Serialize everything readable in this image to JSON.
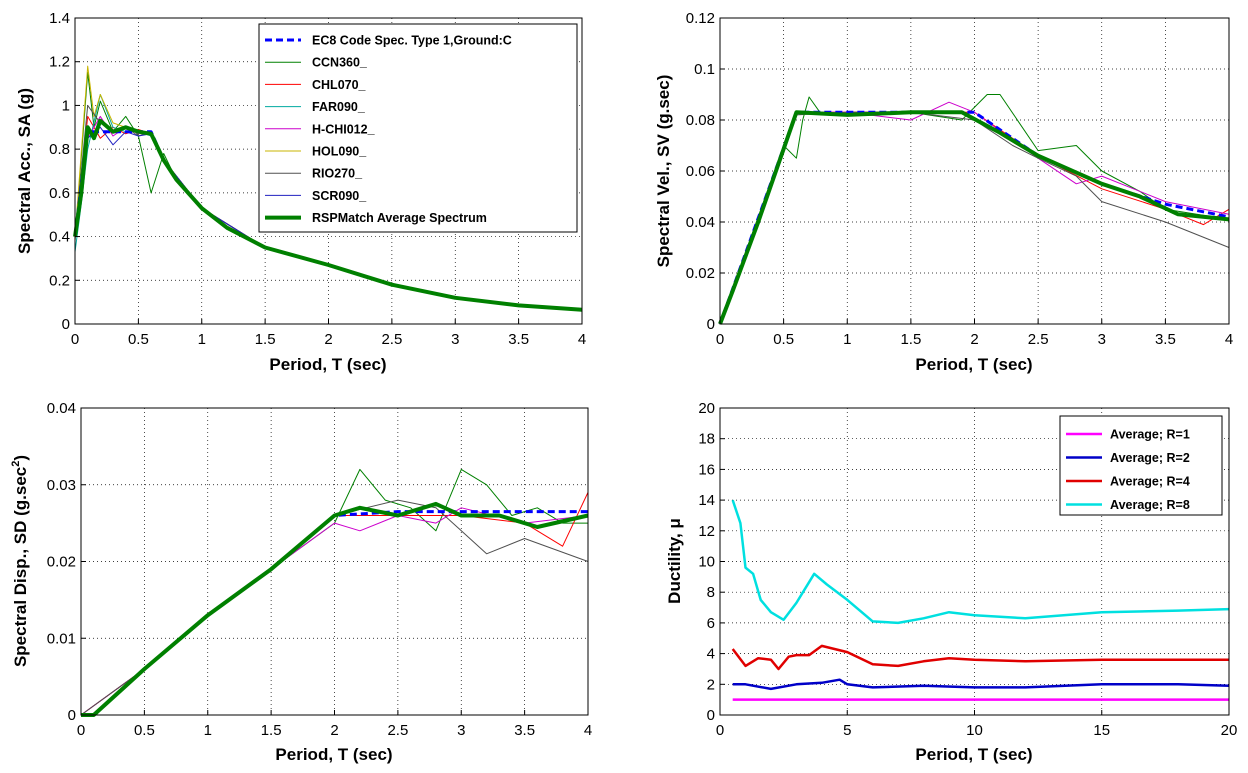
{
  "chart_data": [
    {
      "type": "line",
      "xlabel": "Period, T (sec)",
      "ylabel": "Spectral Acc., SA (g)",
      "xlim": [
        0,
        4
      ],
      "ylim": [
        0,
        1.4
      ],
      "xticks": [
        "0",
        "0.5",
        "1",
        "1.5",
        "2",
        "2.5",
        "3",
        "3.5",
        "4"
      ],
      "yticks": [
        "0",
        "0.2",
        "0.4",
        "0.6",
        "0.8",
        "1",
        "1.2",
        "1.4"
      ],
      "grid": true,
      "legend_position": "top-right",
      "series": [
        {
          "name": "EC8 Code Spec. Type 1,Ground:C",
          "color": "#0000ff",
          "style": "dashed",
          "x": [
            0,
            0.1,
            0.2,
            0.3,
            0.4,
            0.5,
            0.6,
            0.7,
            0.8,
            1.0,
            1.2,
            1.5,
            2.0,
            2.5,
            3.0,
            3.5,
            4.0
          ],
          "y": [
            0.4,
            0.88,
            0.88,
            0.88,
            0.88,
            0.88,
            0.88,
            0.75,
            0.66,
            0.53,
            0.44,
            0.35,
            0.27,
            0.18,
            0.12,
            0.085,
            0.065
          ]
        },
        {
          "name": "CCN360_",
          "color": "#008000",
          "x": [
            0,
            0.1,
            0.15,
            0.2,
            0.3,
            0.4,
            0.5,
            0.6,
            0.7,
            0.8,
            1.0,
            1.5,
            2.0,
            2.5,
            3.0,
            3.5,
            4.0
          ],
          "y": [
            0.38,
            1.15,
            0.9,
            1.02,
            0.88,
            0.95,
            0.86,
            0.6,
            0.78,
            0.66,
            0.53,
            0.35,
            0.27,
            0.18,
            0.12,
            0.09,
            0.065
          ]
        },
        {
          "name": "CHL070_",
          "color": "#ff0000",
          "x": [
            0,
            0.1,
            0.2,
            0.3,
            0.4,
            0.5,
            0.6,
            0.7,
            1.0,
            1.5,
            2.0,
            2.5,
            3.0,
            3.5,
            4.0
          ],
          "y": [
            0.4,
            0.95,
            0.85,
            0.9,
            0.87,
            0.89,
            0.87,
            0.75,
            0.53,
            0.35,
            0.27,
            0.18,
            0.12,
            0.085,
            0.065
          ]
        },
        {
          "name": "FAR090_",
          "color": "#00aaa0",
          "x": [
            0,
            0.05,
            0.1,
            0.2,
            0.3,
            0.4,
            0.5,
            0.6,
            0.7,
            1.0,
            1.5,
            2.0,
            2.5,
            3.0,
            3.5,
            4.0
          ],
          "y": [
            0.33,
            0.55,
            0.8,
            1.05,
            0.9,
            0.88,
            0.88,
            0.86,
            0.75,
            0.53,
            0.35,
            0.27,
            0.18,
            0.12,
            0.085,
            0.065
          ]
        },
        {
          "name": "H-CHI012_",
          "color": "#cc00cc",
          "x": [
            0,
            0.1,
            0.2,
            0.3,
            0.4,
            0.5,
            0.6,
            0.7,
            1.0,
            1.5,
            2.0,
            2.5,
            3.0,
            3.5,
            4.0
          ],
          "y": [
            0.4,
            0.85,
            0.95,
            0.86,
            0.9,
            0.87,
            0.88,
            0.75,
            0.53,
            0.35,
            0.27,
            0.18,
            0.12,
            0.085,
            0.065
          ]
        },
        {
          "name": "HOL090_",
          "color": "#c8b400",
          "x": [
            0,
            0.1,
            0.15,
            0.2,
            0.3,
            0.4,
            0.5,
            0.6,
            0.7,
            1.0,
            1.5,
            2.0,
            2.5,
            3.0,
            3.5,
            4.0
          ],
          "y": [
            0.4,
            1.18,
            0.95,
            1.05,
            0.92,
            0.9,
            0.88,
            0.87,
            0.75,
            0.53,
            0.35,
            0.27,
            0.18,
            0.12,
            0.085,
            0.065
          ]
        },
        {
          "name": "RIO270_",
          "color": "#505050",
          "x": [
            0,
            0.1,
            0.2,
            0.3,
            0.4,
            0.5,
            0.6,
            0.7,
            1.0,
            1.5,
            2.0,
            2.5,
            3.0,
            3.5,
            4.0
          ],
          "y": [
            0.4,
            1.0,
            0.92,
            0.88,
            0.9,
            0.86,
            0.88,
            0.75,
            0.53,
            0.35,
            0.27,
            0.18,
            0.12,
            0.08,
            0.06
          ]
        },
        {
          "name": "SCR090_",
          "color": "#2020c0",
          "x": [
            0,
            0.1,
            0.2,
            0.3,
            0.4,
            0.5,
            0.6,
            0.7,
            1.0,
            1.5,
            2.0,
            2.5,
            3.0,
            3.5,
            4.0
          ],
          "y": [
            0.4,
            0.85,
            0.9,
            0.82,
            0.88,
            0.86,
            0.87,
            0.75,
            0.53,
            0.35,
            0.27,
            0.18,
            0.12,
            0.085,
            0.065
          ]
        },
        {
          "name": "RSPMatch Average Spectrum",
          "color": "#008000",
          "style": "thick",
          "x": [
            0,
            0.05,
            0.1,
            0.15,
            0.2,
            0.3,
            0.4,
            0.5,
            0.6,
            0.7,
            0.8,
            1.0,
            1.2,
            1.5,
            2.0,
            2.5,
            3.0,
            3.5,
            4.0
          ],
          "y": [
            0.4,
            0.6,
            0.9,
            0.85,
            0.93,
            0.88,
            0.9,
            0.88,
            0.87,
            0.75,
            0.66,
            0.53,
            0.44,
            0.35,
            0.27,
            0.18,
            0.12,
            0.085,
            0.065
          ]
        }
      ]
    },
    {
      "type": "line",
      "xlabel": "Period, T (sec)",
      "ylabel": "Spectral Vel., SV (g.sec)",
      "xlim": [
        0,
        4
      ],
      "ylim": [
        0,
        0.12
      ],
      "xticks": [
        "0",
        "0.5",
        "1",
        "1.5",
        "2",
        "2.5",
        "3",
        "3.5",
        "4"
      ],
      "yticks": [
        "0",
        "0.02",
        "0.04",
        "0.06",
        "0.08",
        "0.1",
        "0.12"
      ],
      "grid": true,
      "series": [
        {
          "name": "EC8 Code Spec. Type 1,Ground:C",
          "color": "#0000ff",
          "style": "dashed",
          "x": [
            0,
            0.6,
            1.0,
            1.5,
            2.0,
            2.5,
            3.0,
            3.5,
            4.0
          ],
          "y": [
            0,
            0.083,
            0.083,
            0.083,
            0.083,
            0.066,
            0.055,
            0.047,
            0.042
          ]
        },
        {
          "name": "CCN360_",
          "color": "#008000",
          "x": [
            0,
            0.5,
            0.6,
            0.65,
            0.7,
            0.8,
            1.0,
            1.5,
            1.9,
            2.1,
            2.2,
            2.5,
            2.8,
            3.0,
            3.3,
            3.5,
            4.0
          ],
          "y": [
            0,
            0.07,
            0.065,
            0.08,
            0.089,
            0.082,
            0.083,
            0.083,
            0.08,
            0.09,
            0.09,
            0.068,
            0.07,
            0.06,
            0.052,
            0.045,
            0.041
          ]
        },
        {
          "name": "CHL070_",
          "color": "#ff0000",
          "x": [
            0,
            0.6,
            1.0,
            1.5,
            2.0,
            2.5,
            3.0,
            3.5,
            3.8,
            4.0
          ],
          "y": [
            0,
            0.083,
            0.083,
            0.083,
            0.083,
            0.066,
            0.053,
            0.045,
            0.039,
            0.045
          ]
        },
        {
          "name": "H-CHI012_",
          "color": "#cc00cc",
          "x": [
            0,
            0.6,
            1.0,
            1.5,
            1.8,
            2.0,
            2.5,
            2.8,
            3.0,
            3.5,
            4.0
          ],
          "y": [
            0,
            0.083,
            0.083,
            0.08,
            0.087,
            0.083,
            0.065,
            0.055,
            0.058,
            0.048,
            0.043
          ]
        },
        {
          "name": "RIO270_",
          "color": "#505050",
          "x": [
            0,
            0.6,
            1.0,
            1.5,
            2.0,
            2.3,
            2.5,
            2.8,
            3.0,
            3.5,
            4.0
          ],
          "y": [
            0,
            0.082,
            0.083,
            0.083,
            0.08,
            0.07,
            0.065,
            0.058,
            0.048,
            0.04,
            0.03
          ]
        },
        {
          "name": "RSPMatch Average Spectrum",
          "color": "#008000",
          "style": "thick",
          "x": [
            0,
            0.1,
            0.3,
            0.6,
            1.0,
            1.5,
            1.9,
            2.2,
            2.5,
            3.0,
            3.3,
            3.6,
            4.0
          ],
          "y": [
            0,
            0.013,
            0.04,
            0.083,
            0.082,
            0.083,
            0.083,
            0.075,
            0.066,
            0.055,
            0.05,
            0.043,
            0.041
          ]
        }
      ]
    },
    {
      "type": "line",
      "xlabel": "Period, T (sec)",
      "ylabel": "Spectral Disp., SD (g.sec",
      "ylabel_superscript": "2",
      "ylabel_suffix": ")",
      "xlim": [
        0,
        4
      ],
      "ylim": [
        0,
        0.04
      ],
      "xticks": [
        "0",
        "0.5",
        "1",
        "1.5",
        "2",
        "2.5",
        "3",
        "3.5",
        "4"
      ],
      "yticks": [
        "0",
        "0.01",
        "0.02",
        "0.03",
        "0.04"
      ],
      "grid": true,
      "series": [
        {
          "name": "EC8 Code Spec. Type 1,Ground:C",
          "color": "#0000ff",
          "style": "dashed",
          "x": [
            0,
            0.1,
            0.5,
            1.0,
            1.5,
            2.0,
            2.5,
            3.0,
            3.5,
            4.0
          ],
          "y": [
            0,
            0,
            0.006,
            0.013,
            0.019,
            0.026,
            0.0265,
            0.0265,
            0.0265,
            0.0265
          ]
        },
        {
          "name": "CCN360_",
          "color": "#008000",
          "x": [
            0,
            0.5,
            1.0,
            1.5,
            2.0,
            2.2,
            2.4,
            2.6,
            2.8,
            3.0,
            3.2,
            3.4,
            3.6,
            3.8,
            4.0
          ],
          "y": [
            0,
            0.006,
            0.013,
            0.019,
            0.025,
            0.032,
            0.028,
            0.027,
            0.024,
            0.032,
            0.03,
            0.026,
            0.027,
            0.025,
            0.025
          ]
        },
        {
          "name": "CHL070_",
          "color": "#ff0000",
          "x": [
            0,
            0.5,
            1.0,
            1.5,
            2.0,
            2.5,
            3.0,
            3.5,
            3.8,
            4.0
          ],
          "y": [
            0,
            0.006,
            0.013,
            0.019,
            0.026,
            0.026,
            0.026,
            0.025,
            0.022,
            0.029
          ]
        },
        {
          "name": "H-CHI012_",
          "color": "#cc00cc",
          "x": [
            0,
            0.5,
            1.0,
            1.5,
            2.0,
            2.2,
            2.5,
            2.8,
            3.0,
            3.5,
            4.0
          ],
          "y": [
            0,
            0.006,
            0.013,
            0.019,
            0.025,
            0.024,
            0.026,
            0.025,
            0.027,
            0.025,
            0.026
          ]
        },
        {
          "name": "RIO270_",
          "color": "#505050",
          "x": [
            0,
            0.5,
            1.0,
            1.5,
            2.0,
            2.5,
            2.8,
            3.0,
            3.2,
            3.5,
            4.0
          ],
          "y": [
            0,
            0.006,
            0.013,
            0.019,
            0.026,
            0.028,
            0.027,
            0.024,
            0.021,
            0.023,
            0.02
          ]
        },
        {
          "name": "RSPMatch Average Spectrum",
          "color": "#008000",
          "style": "thick",
          "x": [
            0,
            0.1,
            0.5,
            1.0,
            1.5,
            2.0,
            2.2,
            2.5,
            2.8,
            3.0,
            3.3,
            3.6,
            4.0
          ],
          "y": [
            0,
            0,
            0.006,
            0.013,
            0.019,
            0.026,
            0.027,
            0.026,
            0.0275,
            0.026,
            0.026,
            0.0245,
            0.026
          ]
        }
      ]
    },
    {
      "type": "line",
      "xlabel": "Period, T (sec)",
      "ylabel": "Ductility, μ",
      "xlim": [
        0,
        20
      ],
      "ylim": [
        0,
        20
      ],
      "xticks": [
        "0",
        "5",
        "10",
        "15",
        "20"
      ],
      "yticks": [
        "0",
        "2",
        "4",
        "6",
        "8",
        "10",
        "12",
        "14",
        "16",
        "18",
        "20"
      ],
      "grid": true,
      "legend_position": "top-right",
      "series": [
        {
          "name": "Average; R=1",
          "color": "#ff00ff",
          "x": [
            0.5,
            20
          ],
          "y": [
            1,
            1
          ]
        },
        {
          "name": "Average; R=2",
          "color": "#0000c8",
          "x": [
            0.5,
            1,
            2,
            3,
            4,
            4.7,
            5,
            6,
            8,
            10,
            12,
            15,
            18,
            20
          ],
          "y": [
            2,
            2,
            1.7,
            2,
            2.1,
            2.3,
            2,
            1.8,
            1.9,
            1.8,
            1.8,
            2,
            2,
            1.9
          ]
        },
        {
          "name": "Average; R=4",
          "color": "#e00000",
          "x": [
            0.5,
            1,
            1.5,
            2,
            2.3,
            2.7,
            3,
            3.5,
            4,
            5,
            6,
            7,
            8,
            9,
            10,
            12,
            15,
            18,
            20
          ],
          "y": [
            4.3,
            3.2,
            3.7,
            3.6,
            3.0,
            3.8,
            3.9,
            3.9,
            4.5,
            4.1,
            3.3,
            3.2,
            3.5,
            3.7,
            3.6,
            3.5,
            3.6,
            3.6,
            3.6
          ]
        },
        {
          "name": "Average; R=8",
          "color": "#00e0e0",
          "x": [
            0.5,
            0.8,
            1,
            1.3,
            1.6,
            2,
            2.5,
            3,
            3.7,
            4.2,
            5,
            6,
            7,
            8,
            9,
            10,
            12,
            15,
            18,
            20
          ],
          "y": [
            14,
            12.5,
            9.6,
            9.2,
            7.5,
            6.7,
            6.2,
            7.3,
            9.2,
            8.5,
            7.5,
            6.1,
            6.0,
            6.3,
            6.7,
            6.5,
            6.3,
            6.7,
            6.8,
            6.9
          ]
        }
      ]
    }
  ]
}
